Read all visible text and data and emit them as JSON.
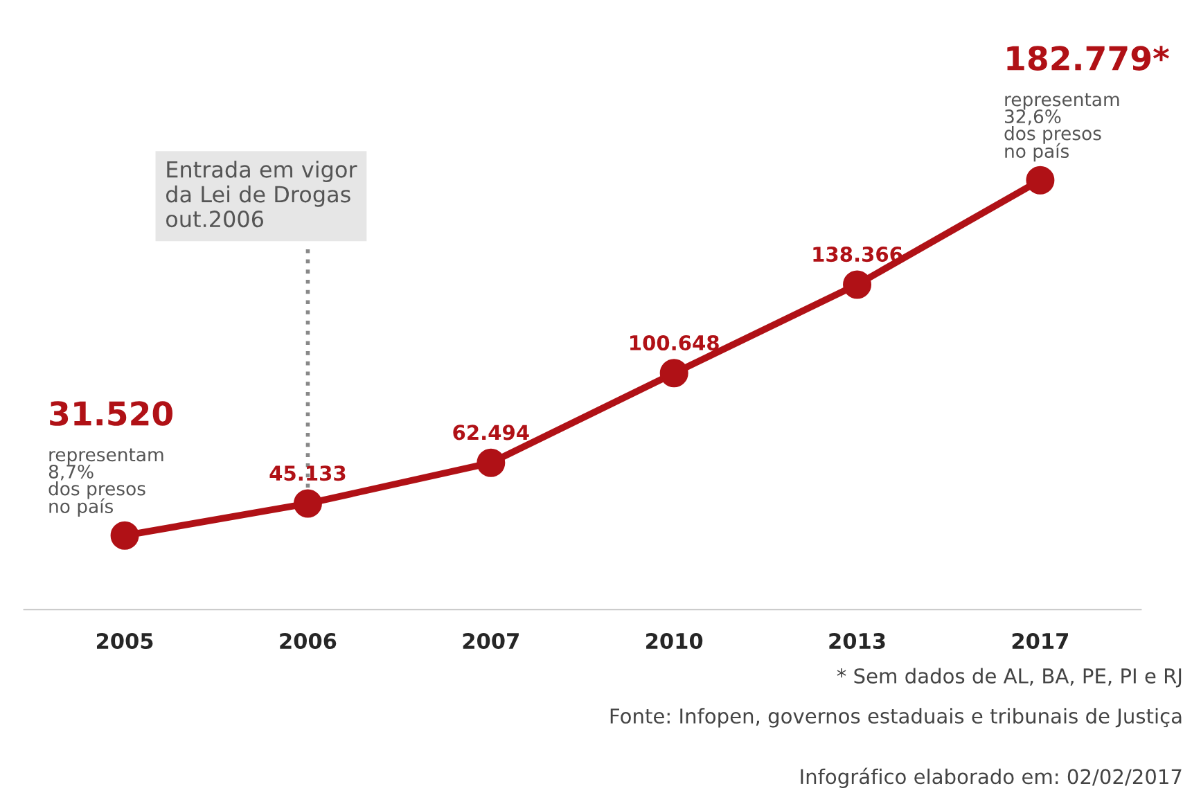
{
  "chart_data": {
    "type": "line",
    "categories": [
      "2005",
      "2006",
      "2007",
      "2010",
      "2013",
      "2017"
    ],
    "series": [
      {
        "color": "#b01116",
        "values": [
          31520,
          45133,
          62494,
          100648,
          138366,
          182779
        ],
        "value_labels": [
          "31.520",
          "45.133",
          "62.494",
          "100.648",
          "138.366",
          "182.779*"
        ]
      }
    ],
    "tick_labels": "x",
    "marker": "circle",
    "line_style": "solid",
    "grid": false,
    "ref_lines": [
      {
        "axis": "x",
        "value": "2006",
        "label": "Entrada em vigor\nda Lei de Drogas\nout.2006",
        "color": "#888888",
        "line_style": "dotted"
      }
    ],
    "annotations": [
      {
        "text": "representam\n8,7%\ndos presos\nno país",
        "x": "2005",
        "y": 31520
      },
      {
        "text": "representam\n32,6%\ndos presos\nno país",
        "x": "2017",
        "y": 182779
      },
      "* Sem dados de AL, BA, PE, PI e RJ",
      "Fonte: Infopen, governos estaduais e tribunais de Justiça",
      "Infográfico elaborado em: 02/02/2017"
    ]
  }
}
